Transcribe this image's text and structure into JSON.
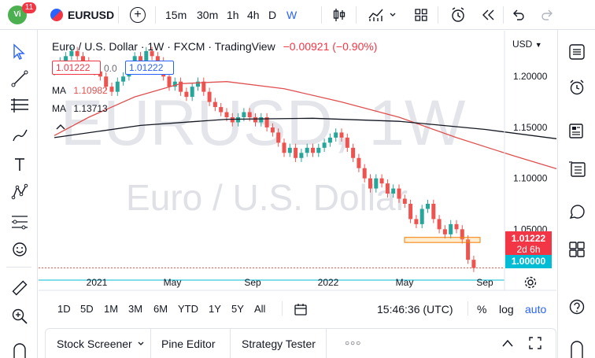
{
  "topbar": {
    "avatar_badge": "11",
    "symbol": "EURUSD",
    "intervals": [
      "15m",
      "30m",
      "1h",
      "4h",
      "D",
      "W"
    ],
    "active_interval": "W"
  },
  "chart": {
    "title": "Euro / U.S. Dollar · 1W · FXCM · TradingView",
    "change": "−0.00921 (−0.90%)",
    "currency": "USD",
    "watermark_big": "EURUSD, 1W",
    "watermark_small": "Euro / U.S. Dollar",
    "ma_rows": [
      {
        "label": "MA",
        "value": "1.10982",
        "color": "#e05050"
      },
      {
        "label": "MA",
        "value": "1.13713",
        "color": "#131722"
      }
    ],
    "price_box_left": "1.01222",
    "price_box_zero": "0.0",
    "price_box_right": "1.01222",
    "current_price": "1.01222",
    "countdown": "2d 6h",
    "level_label": "1.00000",
    "price_ticks": [
      "1.20000",
      "1.15000",
      "1.10000",
      "1.05000"
    ],
    "time_ticks": [
      "2021",
      "May",
      "Sep",
      "2022",
      "May",
      "Sep"
    ],
    "colors": {
      "up": "#26a69a",
      "down": "#ef5350",
      "ma_fast": "#e05050",
      "ma_slow": "#131722",
      "level": "#00bcd4",
      "accent": "#2962ff"
    }
  },
  "chart_data": {
    "type": "line",
    "title": "Euro / U.S. Dollar · 1W · FXCM · TradingView",
    "xlabel": "",
    "ylabel": "USD",
    "ylim": [
      0.99,
      1.245
    ],
    "x_ticks": [
      "2021",
      "May",
      "Sep",
      "2022",
      "May",
      "Sep"
    ],
    "y_ticks": [
      1.05,
      1.1,
      1.15,
      1.2
    ],
    "series": [
      {
        "name": "MA",
        "x": [
          0,
          6,
          14,
          22,
          30,
          40,
          50,
          60,
          70,
          80,
          90
        ],
        "values": [
          1.142,
          1.16,
          1.18,
          1.193,
          1.195,
          1.188,
          1.175,
          1.16,
          1.14,
          1.122,
          1.105
        ]
      },
      {
        "name": "MA",
        "x": [
          0,
          15,
          30,
          45,
          60,
          75,
          90
        ],
        "values": [
          1.14,
          1.152,
          1.158,
          1.159,
          1.156,
          1.148,
          1.137
        ]
      }
    ],
    "closes": [
      1.21,
      1.215,
      1.22,
      1.225,
      1.22,
      1.215,
      1.21,
      1.205,
      1.2,
      1.19,
      1.185,
      1.195,
      1.2,
      1.21,
      1.22,
      1.215,
      1.225,
      1.22,
      1.215,
      1.2,
      1.19,
      1.195,
      1.185,
      1.18,
      1.19,
      1.195,
      1.185,
      1.175,
      1.17,
      1.165,
      1.16,
      1.155,
      1.16,
      1.165,
      1.16,
      1.155,
      1.16,
      1.15,
      1.145,
      1.135,
      1.125,
      1.13,
      1.12,
      1.125,
      1.13,
      1.125,
      1.13,
      1.135,
      1.14,
      1.145,
      1.14,
      1.13,
      1.12,
      1.11,
      1.1,
      1.09,
      1.1,
      1.095,
      1.085,
      1.09,
      1.08,
      1.075,
      1.06,
      1.055,
      1.07,
      1.075,
      1.06,
      1.05,
      1.045,
      1.055,
      1.05,
      1.04,
      1.02,
      1.012
    ],
    "annotations": [
      {
        "type": "rectangle",
        "from": 1.037,
        "to": 1.042
      },
      {
        "type": "hline",
        "value": 1.0
      }
    ]
  },
  "bottom_toolbar": {
    "ranges": [
      "1D",
      "5D",
      "1M",
      "3M",
      "6M",
      "YTD",
      "1Y",
      "5Y",
      "All"
    ],
    "time": "15:46:36 (UTC)",
    "percent": "%",
    "log": "log",
    "auto": "auto"
  },
  "bottom_panel": {
    "tabs": [
      "Stock Screener",
      "Pine Editor",
      "Strategy Tester"
    ],
    "more": "○○○"
  }
}
